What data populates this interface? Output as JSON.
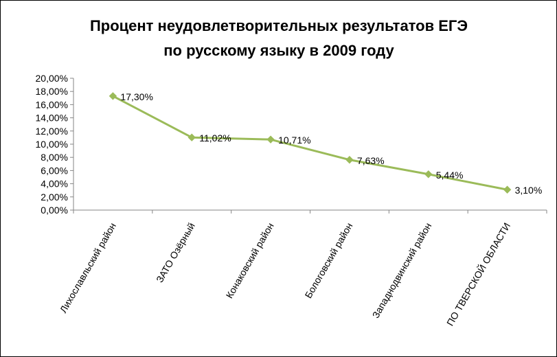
{
  "chart_data": {
    "type": "line",
    "title": "Процент неудовлетворительных результатов ЕГЭ",
    "subtitle": "по русскому языку в 2009 году",
    "xlabel": "",
    "ylabel": "",
    "categories": [
      "Лихославльский район",
      "ЗАТО Озёрный",
      "Конаковский район",
      "Бологовский район",
      "Западнодвинский район",
      "ПО ТВЕРСКОЙ ОБЛАСТИ"
    ],
    "series": [
      {
        "values": [
          17.3,
          11.02,
          10.71,
          7.63,
          5.44,
          3.1
        ]
      }
    ],
    "data_labels": [
      "17,30%",
      "11,02%",
      "10,71%",
      "7,63%",
      "5,44%",
      "3,10%"
    ],
    "y_ticks": [
      "0,00%",
      "2,00%",
      "4,00%",
      "6,00%",
      "8,00%",
      "10,00%",
      "12,00%",
      "14,00%",
      "16,00%",
      "18,00%",
      "20,00%"
    ],
    "ylim": [
      0,
      20
    ],
    "grid": false,
    "legend": "none",
    "line_color": "#9bbb59"
  }
}
